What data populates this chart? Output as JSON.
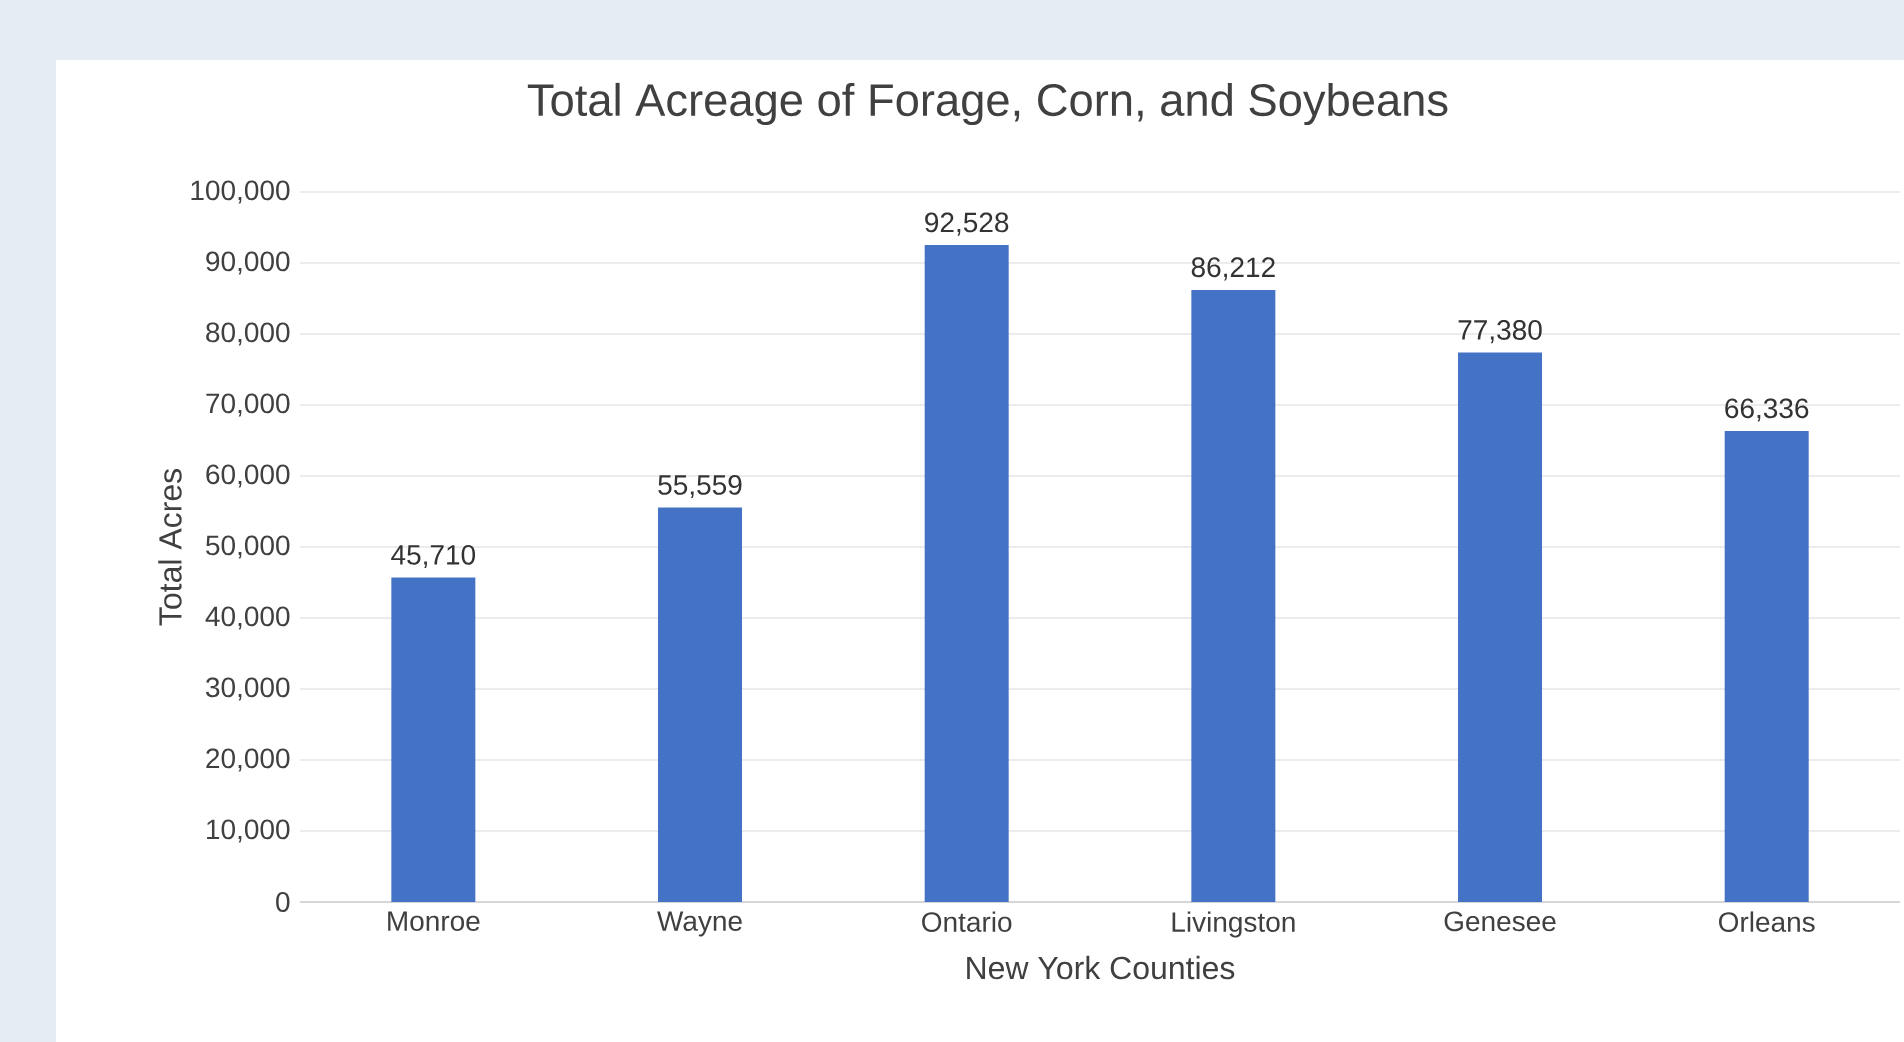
{
  "chart_data": {
    "type": "bar",
    "title": "Total Acreage of Forage, Corn, and Soybeans",
    "xlabel": "New York Counties",
    "ylabel": "Total Acres",
    "categories": [
      "Monroe",
      "Wayne",
      "Ontario",
      "Livingston",
      "Genesee",
      "Orleans"
    ],
    "values": [
      45710,
      55559,
      92528,
      86212,
      77380,
      66336
    ],
    "value_labels": [
      "45,710",
      "55,559",
      "92,528",
      "86,212",
      "77,380",
      "66,336"
    ],
    "color": "#4472c4",
    "ylim": [
      0,
      100000
    ],
    "yticks": [
      0,
      {
        "value": 10000,
        "label": "10,000"
      },
      {
        "value": 20000,
        "label": "20,000"
      },
      {
        "value": 30000,
        "label": "30,000"
      },
      {
        "value": 40000,
        "label": "40,000"
      },
      {
        "value": 50000,
        "label": "50,000"
      },
      {
        "value": 60000,
        "label": "60,000"
      },
      {
        "value": 70000,
        "label": "70,000"
      },
      {
        "value": 80000,
        "label": "80,000"
      },
      {
        "value": 90000,
        "label": "90,000"
      },
      {
        "value": 100000,
        "label": "100,000"
      }
    ],
    "grid": "y"
  }
}
